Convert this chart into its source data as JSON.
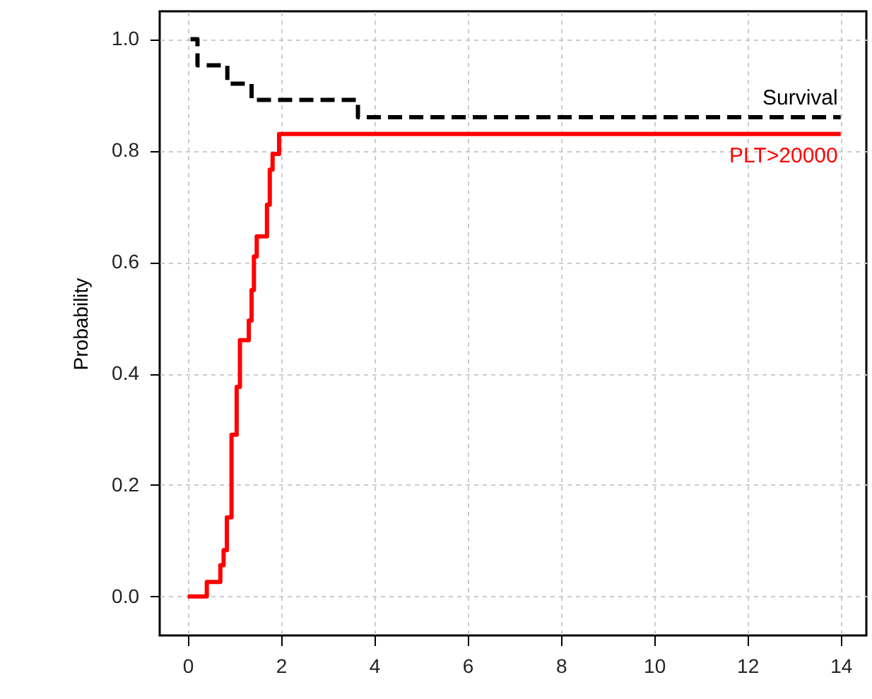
{
  "chart_data": {
    "type": "step",
    "ylabel": "Probability",
    "xlim": [
      -0.6,
      14.55
    ],
    "ylim": [
      -0.07,
      1.05
    ],
    "xticks": [
      0,
      2,
      4,
      6,
      8,
      10,
      12,
      14
    ],
    "yticks": [
      {
        "value": 0,
        "label": "0.0"
      },
      {
        "value": 0.2,
        "label": "0.2"
      },
      {
        "value": 0.4,
        "label": "0.4"
      },
      {
        "value": 0.6,
        "label": "0.6"
      },
      {
        "value": 0.8,
        "label": "0.8"
      },
      {
        "value": 1,
        "label": "1.0"
      }
    ],
    "grid": true,
    "series": [
      {
        "name": "Survival",
        "color": "#000000",
        "line_style": "dashed",
        "x": [
          0.06,
          0.21,
          0.85,
          1.37,
          3.65,
          14
        ],
        "values": [
          1.0,
          0.953,
          0.92,
          0.891,
          0.86,
          0.86
        ]
      },
      {
        "name": "PLT>20000",
        "color": "#ff0000",
        "line_style": "solid",
        "x": [
          0,
          0.41,
          0.7,
          0.77,
          0.84,
          0.94,
          1.05,
          1.12,
          1.31,
          1.37,
          1.42,
          1.48,
          1.7,
          1.76,
          1.82,
          1.96,
          14
        ],
        "values": [
          0,
          0.026,
          0.056,
          0.083,
          0.142,
          0.29,
          0.376,
          0.46,
          0.495,
          0.55,
          0.61,
          0.646,
          0.703,
          0.766,
          0.794,
          0.83,
          0.83
        ]
      }
    ]
  }
}
